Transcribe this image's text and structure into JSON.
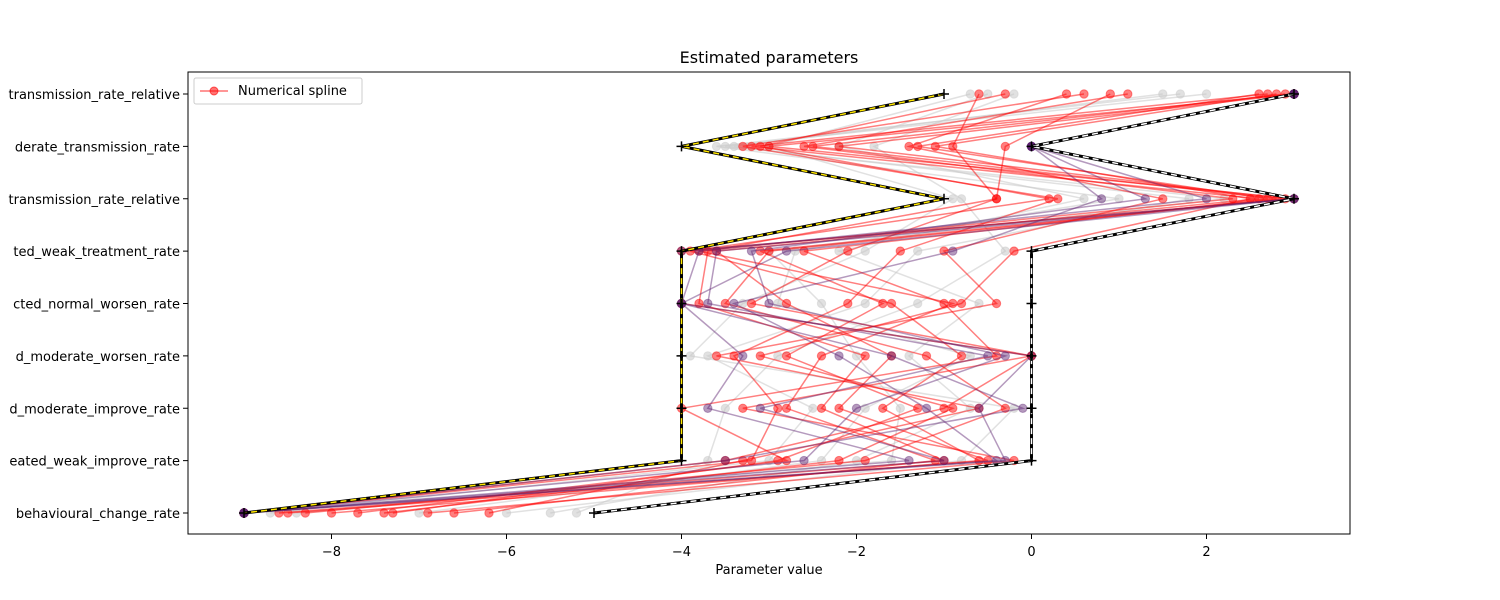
{
  "chart_data": {
    "type": "line",
    "title": "Estimated parameters",
    "xlabel": "Parameter value",
    "ylabel": "",
    "xlim": [
      -9.64,
      3.64
    ],
    "xticks": [
      -8,
      -6,
      -4,
      -2,
      0,
      2
    ],
    "xtick_labels": [
      "−8",
      "−6",
      "−4",
      "−2",
      "0",
      "2"
    ],
    "categories": [
      "transmission_rate_relative",
      "moderate_transmission_rate",
      "transmission_rate_relative",
      "treated_weak_treatment_rate",
      "infected_normal_worsen_rate",
      "treated_moderate_worsen_rate",
      "treated_moderate_improve_rate",
      "treated_weak_improve_rate",
      "behavioural_change_rate"
    ],
    "category_labels_visible": [
      "transmission_rate_relative",
      "derate_transmission_rate",
      "transmission_rate_relative",
      "ted_weak_treatment_rate",
      "cted_normal_worsen_rate",
      "d_moderate_worsen_rate",
      "d_moderate_improve_rate",
      "eated_weak_improve_rate",
      "behavioural_change_rate"
    ],
    "legend": {
      "location": "upper left",
      "entries": [
        {
          "label": "Numerical spline",
          "color": "#ff0000"
        }
      ]
    },
    "colors": {
      "red": "#ff0000",
      "grey": "#c8c8c8",
      "purple": "#5a1e6e",
      "yellow": "#ffe600",
      "black": "#000000"
    },
    "bounds": {
      "lower": [
        -1,
        -4,
        -1,
        -4,
        -4,
        -4,
        -4,
        -4,
        -9
      ],
      "upper": [
        3,
        0,
        3,
        0,
        0,
        0,
        0,
        0,
        -5
      ]
    },
    "series": [
      {
        "name": "Numerical spline",
        "color": "#ff0000",
        "values": [
          3,
          -3.0,
          3,
          -4,
          -4,
          0,
          -1.0,
          -3.5,
          -9
        ]
      },
      {
        "color": "#ff0000",
        "values": [
          2.7,
          -3.2,
          2.6,
          -3.6,
          -2.8,
          -1.6,
          -2.2,
          -0.5,
          -8.5
        ]
      },
      {
        "color": "#ff0000",
        "values": [
          2.9,
          -2.5,
          2.8,
          -3.1,
          -1.7,
          -2.8,
          -1.3,
          -2.9,
          -7.3
        ]
      },
      {
        "color": "#ff0000",
        "values": [
          -0.6,
          -0.9,
          -0.4,
          -2.1,
          -3.2,
          0.0,
          -3.3,
          -0.2,
          -6.9
        ]
      },
      {
        "color": "#ff0000",
        "values": [
          1.1,
          -2.6,
          2.3,
          -3.8,
          -0.9,
          -2.4,
          -2.8,
          -1.1,
          -6.6
        ]
      },
      {
        "color": "#ff0000",
        "values": [
          0.4,
          -1.4,
          1.5,
          -1.0,
          -0.4,
          -3.6,
          -0.6,
          -3.3,
          -6.2
        ]
      },
      {
        "color": "#ff0000",
        "values": [
          -0.3,
          -3.1,
          0.2,
          -3.9,
          -1.6,
          -0.8,
          -1.7,
          -0.6,
          -8.0
        ]
      },
      {
        "color": "#ff0000",
        "values": [
          2.8,
          -1.1,
          2.5,
          -0.2,
          -0.8,
          -3.1,
          -0.9,
          -2.2,
          -7.4
        ]
      },
      {
        "color": "#ff0000",
        "values": [
          0.9,
          -0.3,
          -0.4,
          -3.7,
          -3.8,
          -1.9,
          -2.4,
          -1.0,
          -8.6
        ]
      },
      {
        "color": "#ff0000",
        "values": [
          2.6,
          -1.3,
          2.7,
          -2.6,
          -1.0,
          -0.4,
          -4.0,
          -2.8,
          -7.7
        ]
      },
      {
        "color": "#ff0000",
        "values": [
          3,
          -2.2,
          2.9,
          -3.0,
          -3.5,
          -1.2,
          -0.3,
          -1.9,
          -8.3
        ]
      },
      {
        "color": "#ff0000",
        "values": [
          0.6,
          -3.3,
          0.3,
          -1.5,
          -2.1,
          -3.4,
          -2.9,
          -3.2,
          -9
        ]
      },
      {
        "color": "#5a1e6e",
        "values": [
          3,
          0,
          3,
          -4,
          -4,
          0,
          -0.6,
          -0.3,
          -9
        ]
      },
      {
        "color": "#5a1e6e",
        "values": [
          3,
          0,
          3,
          -3.6,
          -3.7,
          -0.5,
          -3.1,
          -1.0,
          -9
        ]
      },
      {
        "color": "#5a1e6e",
        "values": [
          3,
          0,
          3,
          -2.8,
          -4,
          -1.6,
          -0.1,
          -3.5,
          -9
        ]
      },
      {
        "color": "#5a1e6e",
        "values": [
          3,
          0,
          1.3,
          -3.2,
          -3.0,
          -0.3,
          -2.0,
          -2.6,
          -9
        ]
      },
      {
        "color": "#5a1e6e",
        "values": [
          3,
          0,
          0.8,
          -0.9,
          -3.4,
          -2.2,
          -1.2,
          -0.4,
          -9
        ]
      },
      {
        "color": "#5a1e6e",
        "values": [
          3,
          0,
          2.0,
          -3.8,
          -4,
          -3.3,
          -3.7,
          -1.4,
          -9
        ]
      },
      {
        "color": "#c8c8c8",
        "values": [
          2.0,
          -3.5,
          2.2,
          -3.0,
          -2.4,
          -2.0,
          -1.5,
          -1.6,
          -8.4
        ]
      },
      {
        "color": "#c8c8c8",
        "values": [
          1.5,
          -3.4,
          1.8,
          -1.3,
          -1.9,
          -3.7,
          -2.5,
          -3.0,
          -8.7
        ]
      },
      {
        "color": "#c8c8c8",
        "values": [
          -0.5,
          -2.2,
          0.6,
          -2.2,
          -0.6,
          -1.4,
          -0.7,
          -2.0,
          -5.5
        ]
      },
      {
        "color": "#c8c8c8",
        "values": [
          -0.2,
          -1.8,
          -0.8,
          -0.3,
          -1.3,
          -2.9,
          -3.5,
          -3.7,
          -5.2
        ]
      },
      {
        "color": "#c8c8c8",
        "values": [
          1.7,
          -3.6,
          1.0,
          -2.7,
          -2.9,
          -0.7,
          -1.9,
          -2.4,
          -7.0
        ]
      },
      {
        "color": "#c8c8c8",
        "values": [
          -0.7,
          -3.0,
          -0.9,
          -1.9,
          -3.3,
          -3.9,
          -0.2,
          -0.8,
          -6.0
        ]
      }
    ]
  }
}
